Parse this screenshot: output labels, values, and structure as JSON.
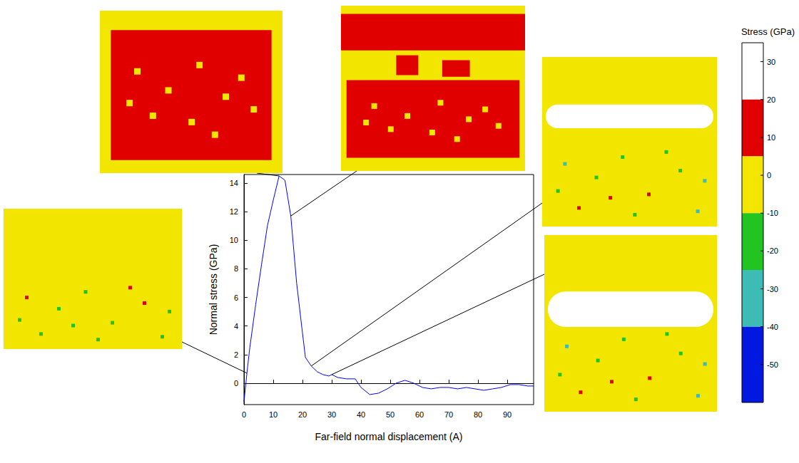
{
  "chart_data": {
    "type": "line",
    "x_label": "Far-field normal displacement (A)",
    "y_label": "Normal stress (GPa)",
    "x": [
      0,
      1,
      2,
      4,
      6,
      8,
      10,
      12,
      14,
      16,
      18,
      20,
      21,
      23,
      25,
      27,
      29,
      30,
      32,
      35,
      38,
      40,
      43,
      46,
      49,
      52,
      55,
      58,
      61,
      64,
      67,
      70,
      73,
      76,
      79,
      82,
      85,
      88,
      91,
      94,
      97,
      99
    ],
    "values": [
      -1.3,
      0.7,
      2.5,
      5.5,
      8.3,
      11,
      12.8,
      14.5,
      14.2,
      11.7,
      7,
      3.5,
      1.8,
      1.2,
      0.8,
      0.6,
      0.5,
      0.6,
      0.4,
      0.3,
      0.3,
      -0.3,
      -0.8,
      -0.7,
      -0.4,
      0,
      0.2,
      0,
      -0.3,
      -0.4,
      -0.3,
      -0.3,
      -0.4,
      -0.3,
      -0.4,
      -0.5,
      -0.4,
      -0.3,
      -0.1,
      -0.1,
      -0.2,
      -0.2
    ],
    "color": "#0000ff",
    "xlim": [
      0,
      99
    ],
    "xticks": [
      0,
      10,
      20,
      30,
      40,
      50,
      60,
      70,
      80,
      90
    ],
    "ylim": [
      -1.5,
      14.6
    ],
    "yticks": [
      0,
      2,
      4,
      6,
      8,
      10,
      12,
      14
    ],
    "grid": false,
    "snapshots": [
      {
        "x": 1,
        "y": 0.7
      },
      {
        "x": 12,
        "y": 14.5
      },
      {
        "x": 16,
        "y": 11.7
      },
      {
        "x": 23,
        "y": 1.2
      },
      {
        "x": 30,
        "y": 0.6
      }
    ],
    "colorbar": {
      "title": "Stress (GPa)",
      "range": [
        -60,
        35
      ],
      "ticks": [
        30,
        20,
        10,
        0,
        -10,
        -20,
        -30,
        -40,
        -50
      ],
      "bands": [
        {
          "from": 20,
          "to": 35,
          "color": "#ffffff"
        },
        {
          "from": 5,
          "to": 20,
          "color": "#e00000"
        },
        {
          "from": -10,
          "to": 5,
          "color": "#f2e600"
        },
        {
          "from": -25,
          "to": -10,
          "color": "#22c422"
        },
        {
          "from": -40,
          "to": -25,
          "color": "#3cbcb4"
        },
        {
          "from": -60,
          "to": -40,
          "color": "#0018e0"
        }
      ]
    }
  }
}
